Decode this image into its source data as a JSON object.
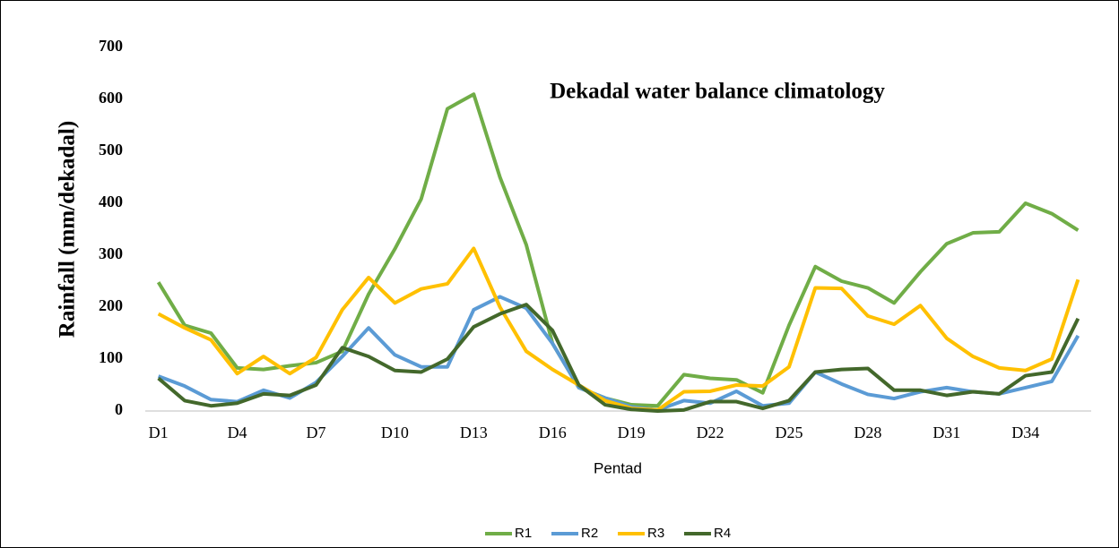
{
  "chart_data": {
    "type": "line",
    "title": "Dekadal water balance  climatology",
    "x_label": "Pentad",
    "y_label": "Rainfall (mm/dekadal)",
    "categories": [
      "D1",
      null,
      null,
      "D4",
      null,
      null,
      "D7",
      null,
      null,
      "D10",
      null,
      null,
      "D13",
      null,
      null,
      "D16",
      null,
      null,
      "D19",
      null,
      null,
      "D22",
      null,
      null,
      "D25",
      null,
      null,
      "D28",
      null,
      null,
      "D31",
      null,
      null,
      "D34",
      null,
      null
    ],
    "ylim": [
      0,
      700
    ],
    "yticks": [
      0,
      100,
      200,
      300,
      400,
      500,
      600,
      700
    ],
    "grid": false,
    "legend": "bottom",
    "series": [
      {
        "name": "R1",
        "color": "#70ad47",
        "values": [
          248,
          165,
          150,
          83,
          80,
          87,
          93,
          115,
          225,
          312,
          408,
          582,
          610,
          450,
          320,
          130,
          45,
          25,
          12,
          10,
          70,
          63,
          60,
          35,
          165,
          278,
          250,
          237,
          208,
          268,
          322,
          343,
          345,
          400,
          380,
          348
        ]
      },
      {
        "name": "R2",
        "color": "#5b9bd5",
        "values": [
          67,
          48,
          22,
          18,
          40,
          25,
          55,
          105,
          160,
          108,
          85,
          85,
          195,
          220,
          198,
          130,
          45,
          25,
          8,
          2,
          20,
          15,
          38,
          10,
          15,
          75,
          52,
          32,
          24,
          37,
          45,
          37,
          33,
          45,
          57,
          145
        ]
      },
      {
        "name": "R3",
        "color": "#ffc000",
        "values": [
          187,
          160,
          137,
          72,
          105,
          72,
          103,
          195,
          257,
          208,
          235,
          245,
          313,
          200,
          115,
          80,
          50,
          20,
          5,
          2,
          37,
          38,
          50,
          48,
          85,
          237,
          236,
          183,
          167,
          203,
          140,
          105,
          83,
          78,
          100,
          253
        ]
      },
      {
        "name": "R4",
        "color": "#43682b",
        "values": [
          63,
          20,
          10,
          15,
          33,
          30,
          50,
          122,
          105,
          78,
          75,
          100,
          162,
          187,
          205,
          155,
          50,
          12,
          3,
          0,
          2,
          18,
          18,
          5,
          20,
          75,
          80,
          82,
          40,
          40,
          30,
          37,
          33,
          68,
          75,
          178
        ]
      }
    ]
  }
}
